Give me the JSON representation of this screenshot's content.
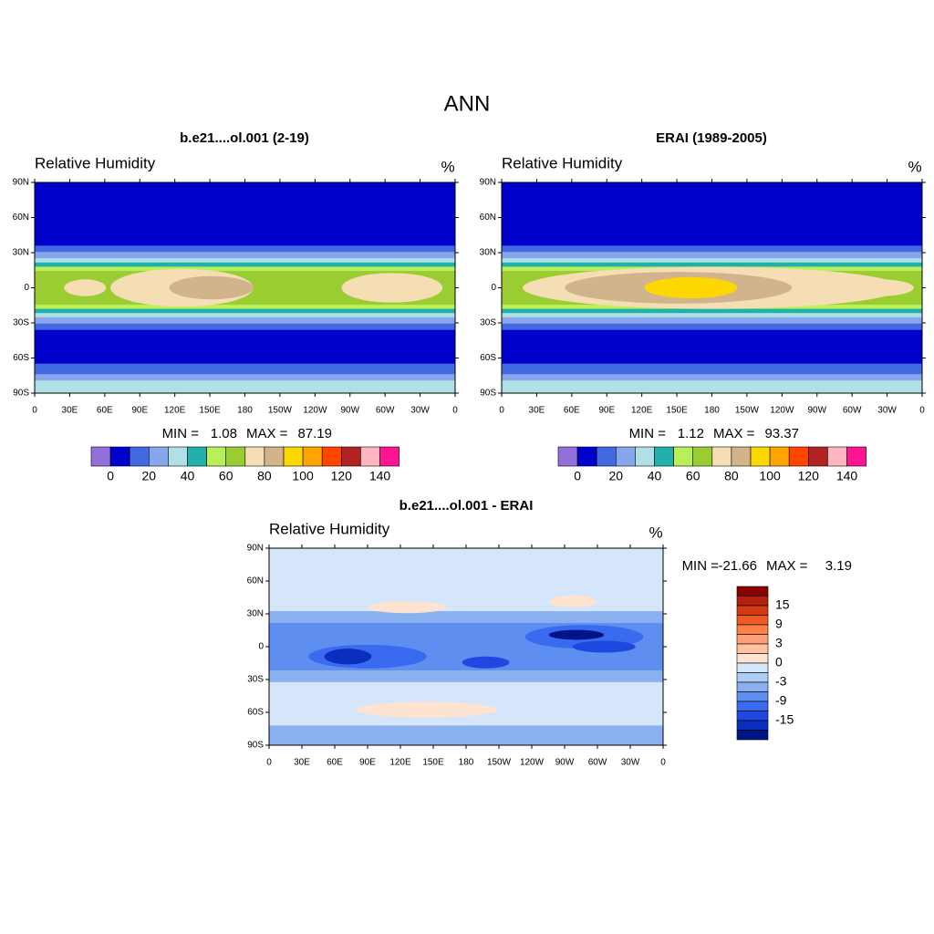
{
  "title": "ANN",
  "panels": [
    {
      "title": "b.e21....ol.001 (2-19)",
      "variable": "Relative Humidity",
      "units": "%",
      "min_label": "MIN =",
      "min": 1.08,
      "max_label": "MAX =",
      "max": 87.19
    },
    {
      "title": "ERAI (1989-2005)",
      "variable": "Relative Humidity",
      "units": "%",
      "min_label": "MIN =",
      "min": 1.12,
      "max_label": "MAX =",
      "max": 93.37
    },
    {
      "title": "b.e21....ol.001 - ERAI",
      "variable": "Relative Humidity",
      "units": "%",
      "min_label": "MIN =",
      "min": -21.66,
      "max_label": "MAX =",
      "max": 3.19
    }
  ],
  "lat_ticks": [
    "90N",
    "60N",
    "30N",
    "0",
    "30S",
    "60S",
    "90S"
  ],
  "lon_ticks": [
    "0",
    "30E",
    "60E",
    "90E",
    "120E",
    "150E",
    "180",
    "150W",
    "120W",
    "90W",
    "60W",
    "30W",
    "0"
  ],
  "colorbar": {
    "colors": [
      "#9370db",
      "#0000cd",
      "#4169e1",
      "#87a6ee",
      "#b0e0e6",
      "#20b2aa",
      "#b7f05a",
      "#9acd32",
      "#f5deb3",
      "#d2b48c",
      "#ffd700",
      "#ffa500",
      "#ff4500",
      "#b22222",
      "#ffb6c1",
      "#ff1493"
    ],
    "labels": [
      "0",
      "20",
      "40",
      "60",
      "80",
      "100",
      "120",
      "140"
    ]
  },
  "diff_colorbar": {
    "colors": [
      "#8b0000",
      "#b5200c",
      "#d63a10",
      "#f05a25",
      "#ff7f45",
      "#ffa07a",
      "#ffc2a0",
      "#fde3d0",
      "#d6e6fa",
      "#b0cdf5",
      "#8ab0f0",
      "#5e8ef0",
      "#3a6af0",
      "#1f48e0",
      "#0a2fbf",
      "#00148a"
    ],
    "labels": [
      "15",
      "9",
      "3",
      "0",
      "-3",
      "-9",
      "-15"
    ]
  }
}
